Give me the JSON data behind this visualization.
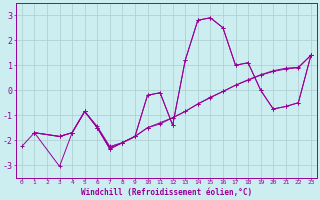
{
  "background_color": "#cceef0",
  "grid_color": "#aacccc",
  "line_color": "#990099",
  "marker": "+",
  "xlabel": "Windchill (Refroidissement éolien,°C)",
  "xlim": [
    -0.5,
    23.5
  ],
  "ylim": [
    -3.5,
    3.5
  ],
  "yticks": [
    -3,
    -2,
    -1,
    0,
    1,
    2,
    3
  ],
  "xticks": [
    0,
    1,
    2,
    3,
    4,
    5,
    6,
    7,
    8,
    9,
    10,
    11,
    12,
    13,
    14,
    15,
    16,
    17,
    18,
    19,
    20,
    21,
    22,
    23
  ],
  "lines": [
    [
      [
        1,
        -1.7
      ],
      [
        3,
        -1.85
      ],
      [
        4,
        -1.7
      ],
      [
        5,
        -0.85
      ],
      [
        6,
        -1.45
      ],
      [
        7,
        -2.25
      ],
      [
        8,
        -2.1
      ],
      [
        9,
        -1.85
      ],
      [
        10,
        -0.2
      ],
      [
        11,
        -0.1
      ],
      [
        12,
        -1.4
      ],
      [
        13,
        1.2
      ],
      [
        14,
        2.8
      ],
      [
        15,
        2.9
      ],
      [
        16,
        2.5
      ],
      [
        17,
        1.0
      ],
      [
        18,
        1.1
      ],
      [
        19,
        0.0
      ],
      [
        20,
        -0.75
      ],
      [
        21,
        -0.65
      ],
      [
        22,
        -0.5
      ],
      [
        23,
        1.4
      ]
    ],
    [
      [
        0,
        -2.25
      ],
      [
        1,
        -1.7
      ],
      [
        3,
        -3.05
      ],
      [
        4,
        -1.7
      ],
      [
        5,
        -0.85
      ],
      [
        6,
        -1.5
      ],
      [
        7,
        -2.3
      ],
      [
        8,
        -2.1
      ],
      [
        9,
        -1.85
      ],
      [
        10,
        -0.2
      ],
      [
        11,
        -0.1
      ],
      [
        12,
        -1.4
      ],
      [
        13,
        1.2
      ],
      [
        14,
        2.8
      ],
      [
        15,
        2.9
      ],
      [
        16,
        2.5
      ],
      [
        17,
        1.0
      ],
      [
        18,
        1.1
      ],
      [
        19,
        0.0
      ],
      [
        20,
        -0.75
      ],
      [
        21,
        -0.65
      ],
      [
        22,
        -0.5
      ],
      [
        23,
        1.4
      ]
    ],
    [
      [
        1,
        -1.7
      ],
      [
        3,
        -1.85
      ],
      [
        4,
        -1.7
      ],
      [
        5,
        -0.85
      ],
      [
        6,
        -1.5
      ],
      [
        7,
        -2.35
      ],
      [
        8,
        -2.1
      ],
      [
        9,
        -1.85
      ],
      [
        10,
        -1.5
      ],
      [
        11,
        -1.35
      ],
      [
        12,
        -1.1
      ],
      [
        13,
        -0.85
      ],
      [
        14,
        -0.55
      ],
      [
        15,
        -0.3
      ],
      [
        16,
        -0.05
      ],
      [
        17,
        0.2
      ],
      [
        18,
        0.4
      ],
      [
        19,
        0.6
      ],
      [
        20,
        0.75
      ],
      [
        21,
        0.85
      ],
      [
        22,
        0.9
      ],
      [
        23,
        1.4
      ]
    ],
    [
      [
        1,
        -1.7
      ],
      [
        3,
        -1.85
      ],
      [
        4,
        -1.7
      ],
      [
        5,
        -0.85
      ],
      [
        6,
        -1.5
      ],
      [
        7,
        -2.35
      ],
      [
        8,
        -2.1
      ],
      [
        9,
        -1.85
      ],
      [
        10,
        -1.5
      ],
      [
        11,
        -1.3
      ],
      [
        12,
        -1.1
      ],
      [
        13,
        -0.85
      ],
      [
        14,
        -0.55
      ],
      [
        15,
        -0.28
      ],
      [
        16,
        -0.05
      ],
      [
        17,
        0.2
      ],
      [
        18,
        0.42
      ],
      [
        19,
        0.62
      ],
      [
        20,
        0.78
      ],
      [
        21,
        0.88
      ],
      [
        22,
        0.92
      ],
      [
        23,
        1.4
      ]
    ]
  ]
}
